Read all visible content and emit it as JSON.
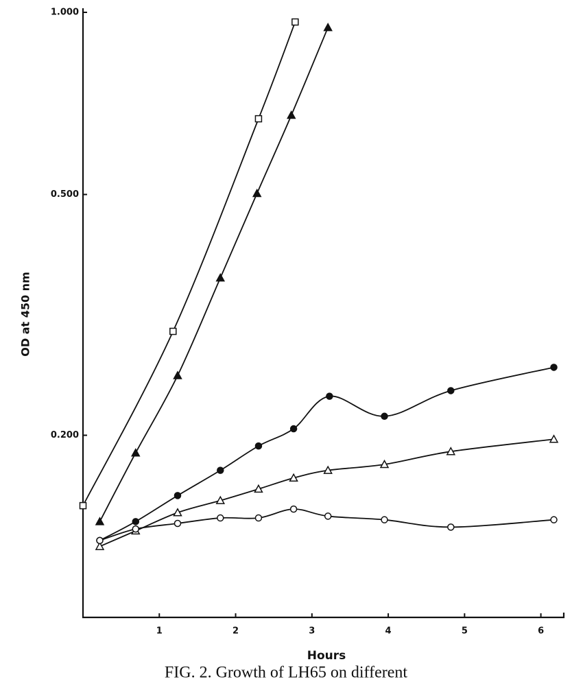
{
  "chart_data": {
    "type": "line",
    "xlabel": "Hours",
    "ylabel": "OD at 450 nm",
    "caption": "FIG. 2. Growth of LH65 on different",
    "log_y": true,
    "xlim": [
      0,
      6.3
    ],
    "xticks": [
      1,
      2,
      3,
      4,
      5,
      6
    ],
    "ylim": [
      0.1,
      1.0
    ],
    "yticks": [
      {
        "value": 1.0,
        "label": "1.000"
      },
      {
        "value": 0.5,
        "label": "0.500"
      },
      {
        "value": 0.2,
        "label": "0.200"
      }
    ],
    "series": [
      {
        "marker": "square-open",
        "color": "#111111",
        "x": [
          0,
          1.18,
          2.3,
          2.78
        ],
        "values": [
          0.153,
          0.297,
          0.667,
          0.964
        ]
      },
      {
        "marker": "triangle-filled",
        "color": "#111111",
        "x": [
          0.22,
          0.69,
          1.24,
          1.8,
          2.28,
          2.73,
          3.21
        ],
        "values": [
          0.144,
          0.187,
          0.251,
          0.364,
          0.502,
          0.676,
          0.944
        ]
      },
      {
        "marker": "circle-filled",
        "color": "#111111",
        "x": [
          0.22,
          0.69,
          1.24,
          1.8,
          2.3,
          2.76,
          3.23,
          3.95,
          4.82,
          6.17
        ],
        "values": [
          0.134,
          0.144,
          0.159,
          0.175,
          0.192,
          0.205,
          0.232,
          0.215,
          0.237,
          0.259
        ]
      },
      {
        "marker": "triangle-open",
        "color": "#111111",
        "x": [
          0.22,
          0.69,
          1.24,
          1.8,
          2.3,
          2.76,
          3.21,
          3.95,
          4.82,
          6.17
        ],
        "values": [
          0.131,
          0.139,
          0.149,
          0.156,
          0.163,
          0.17,
          0.175,
          0.179,
          0.188,
          0.197
        ]
      },
      {
        "marker": "circle-open",
        "color": "#111111",
        "x": [
          0.22,
          0.69,
          1.24,
          1.8,
          2.3,
          2.76,
          3.21,
          3.95,
          4.82,
          6.17
        ],
        "values": [
          0.134,
          0.14,
          0.143,
          0.146,
          0.146,
          0.151,
          0.147,
          0.145,
          0.141,
          0.145
        ]
      }
    ]
  }
}
